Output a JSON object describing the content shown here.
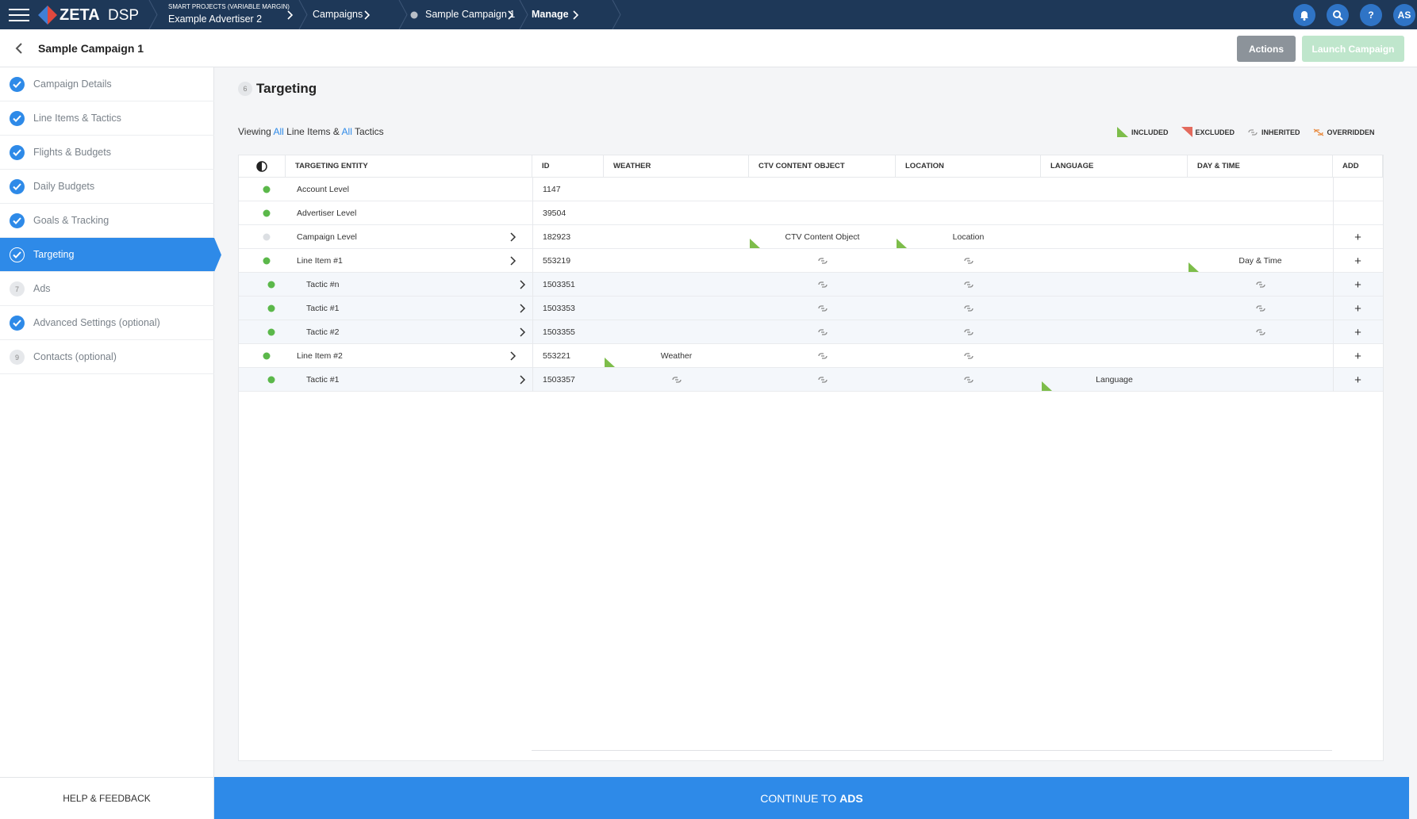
{
  "header": {
    "brand": "ZETA",
    "product": "DSP",
    "breadcrumbs": [
      {
        "super": "SMART PROJECTS (VARIABLE MARGIN)",
        "label": "Example Advertiser 2"
      },
      {
        "label": "Campaigns"
      },
      {
        "label": "Sample Campaign 1"
      },
      {
        "label": "Manage"
      }
    ],
    "help": "?",
    "user": "AS"
  },
  "subheader": {
    "title": "Sample Campaign 1",
    "actions": "Actions",
    "launch": "Launch Campaign"
  },
  "sidebar": {
    "steps": [
      {
        "label": "Campaign Details"
      },
      {
        "label": "Line Items & Tactics"
      },
      {
        "label": "Flights & Budgets"
      },
      {
        "label": "Daily Budgets"
      },
      {
        "label": "Goals & Tracking"
      },
      {
        "label": "Targeting",
        "active": true
      },
      {
        "label": "Ads",
        "number": "7"
      },
      {
        "label": "Advanced Settings (optional)"
      },
      {
        "label": "Contacts (optional)",
        "number": "9"
      }
    ],
    "help": "HELP & FEEDBACK"
  },
  "section": {
    "number": "6",
    "title": "Targeting",
    "viewing": [
      "Viewing ",
      "All",
      " Line Items & ",
      "All",
      " Tactics"
    ],
    "legend": [
      "INCLUDED",
      "EXCLUDED",
      "INHERITED",
      "OVERRIDDEN"
    ]
  },
  "table": {
    "columns": [
      "TARGETING ENTITY",
      "ID",
      "WEATHER",
      "CTV CONTENT OBJECT",
      "LOCATION",
      "LANGUAGE",
      "DAY & TIME",
      "ADD"
    ],
    "add_symbol": "+",
    "rows": [
      {
        "entity": "Account Level",
        "id": "1147",
        "cells": [
          null,
          null,
          null,
          null,
          null
        ]
      },
      {
        "entity": "Advertiser Level",
        "id": "39504",
        "cells": [
          null,
          null,
          null,
          null,
          null
        ]
      },
      {
        "entity": "Campaign Level",
        "id": "182923",
        "cells": [
          null,
          "CTV Content Object",
          "Location",
          null,
          null
        ]
      },
      {
        "entity": "Line Item #1",
        "id": "553219",
        "cells": [
          null,
          null,
          null,
          null,
          "Day & Time"
        ]
      },
      {
        "entity": "Tactic #n",
        "id": "1503351",
        "cells": [
          null,
          null,
          null,
          null,
          null
        ]
      },
      {
        "entity": "Tactic #1",
        "id": "1503353",
        "cells": [
          null,
          null,
          null,
          null,
          null
        ]
      },
      {
        "entity": "Tactic #2",
        "id": "1503355",
        "cells": [
          null,
          null,
          null,
          null,
          null
        ]
      },
      {
        "entity": "Line Item #2",
        "id": "553221",
        "cells": [
          "Weather",
          null,
          null,
          null,
          null
        ]
      },
      {
        "entity": "Tactic #1",
        "id": "1503357",
        "cells": [
          null,
          null,
          null,
          "Language",
          null
        ]
      }
    ]
  },
  "footer": {
    "text": "CONTINUE TO ",
    "bold": "ADS"
  }
}
